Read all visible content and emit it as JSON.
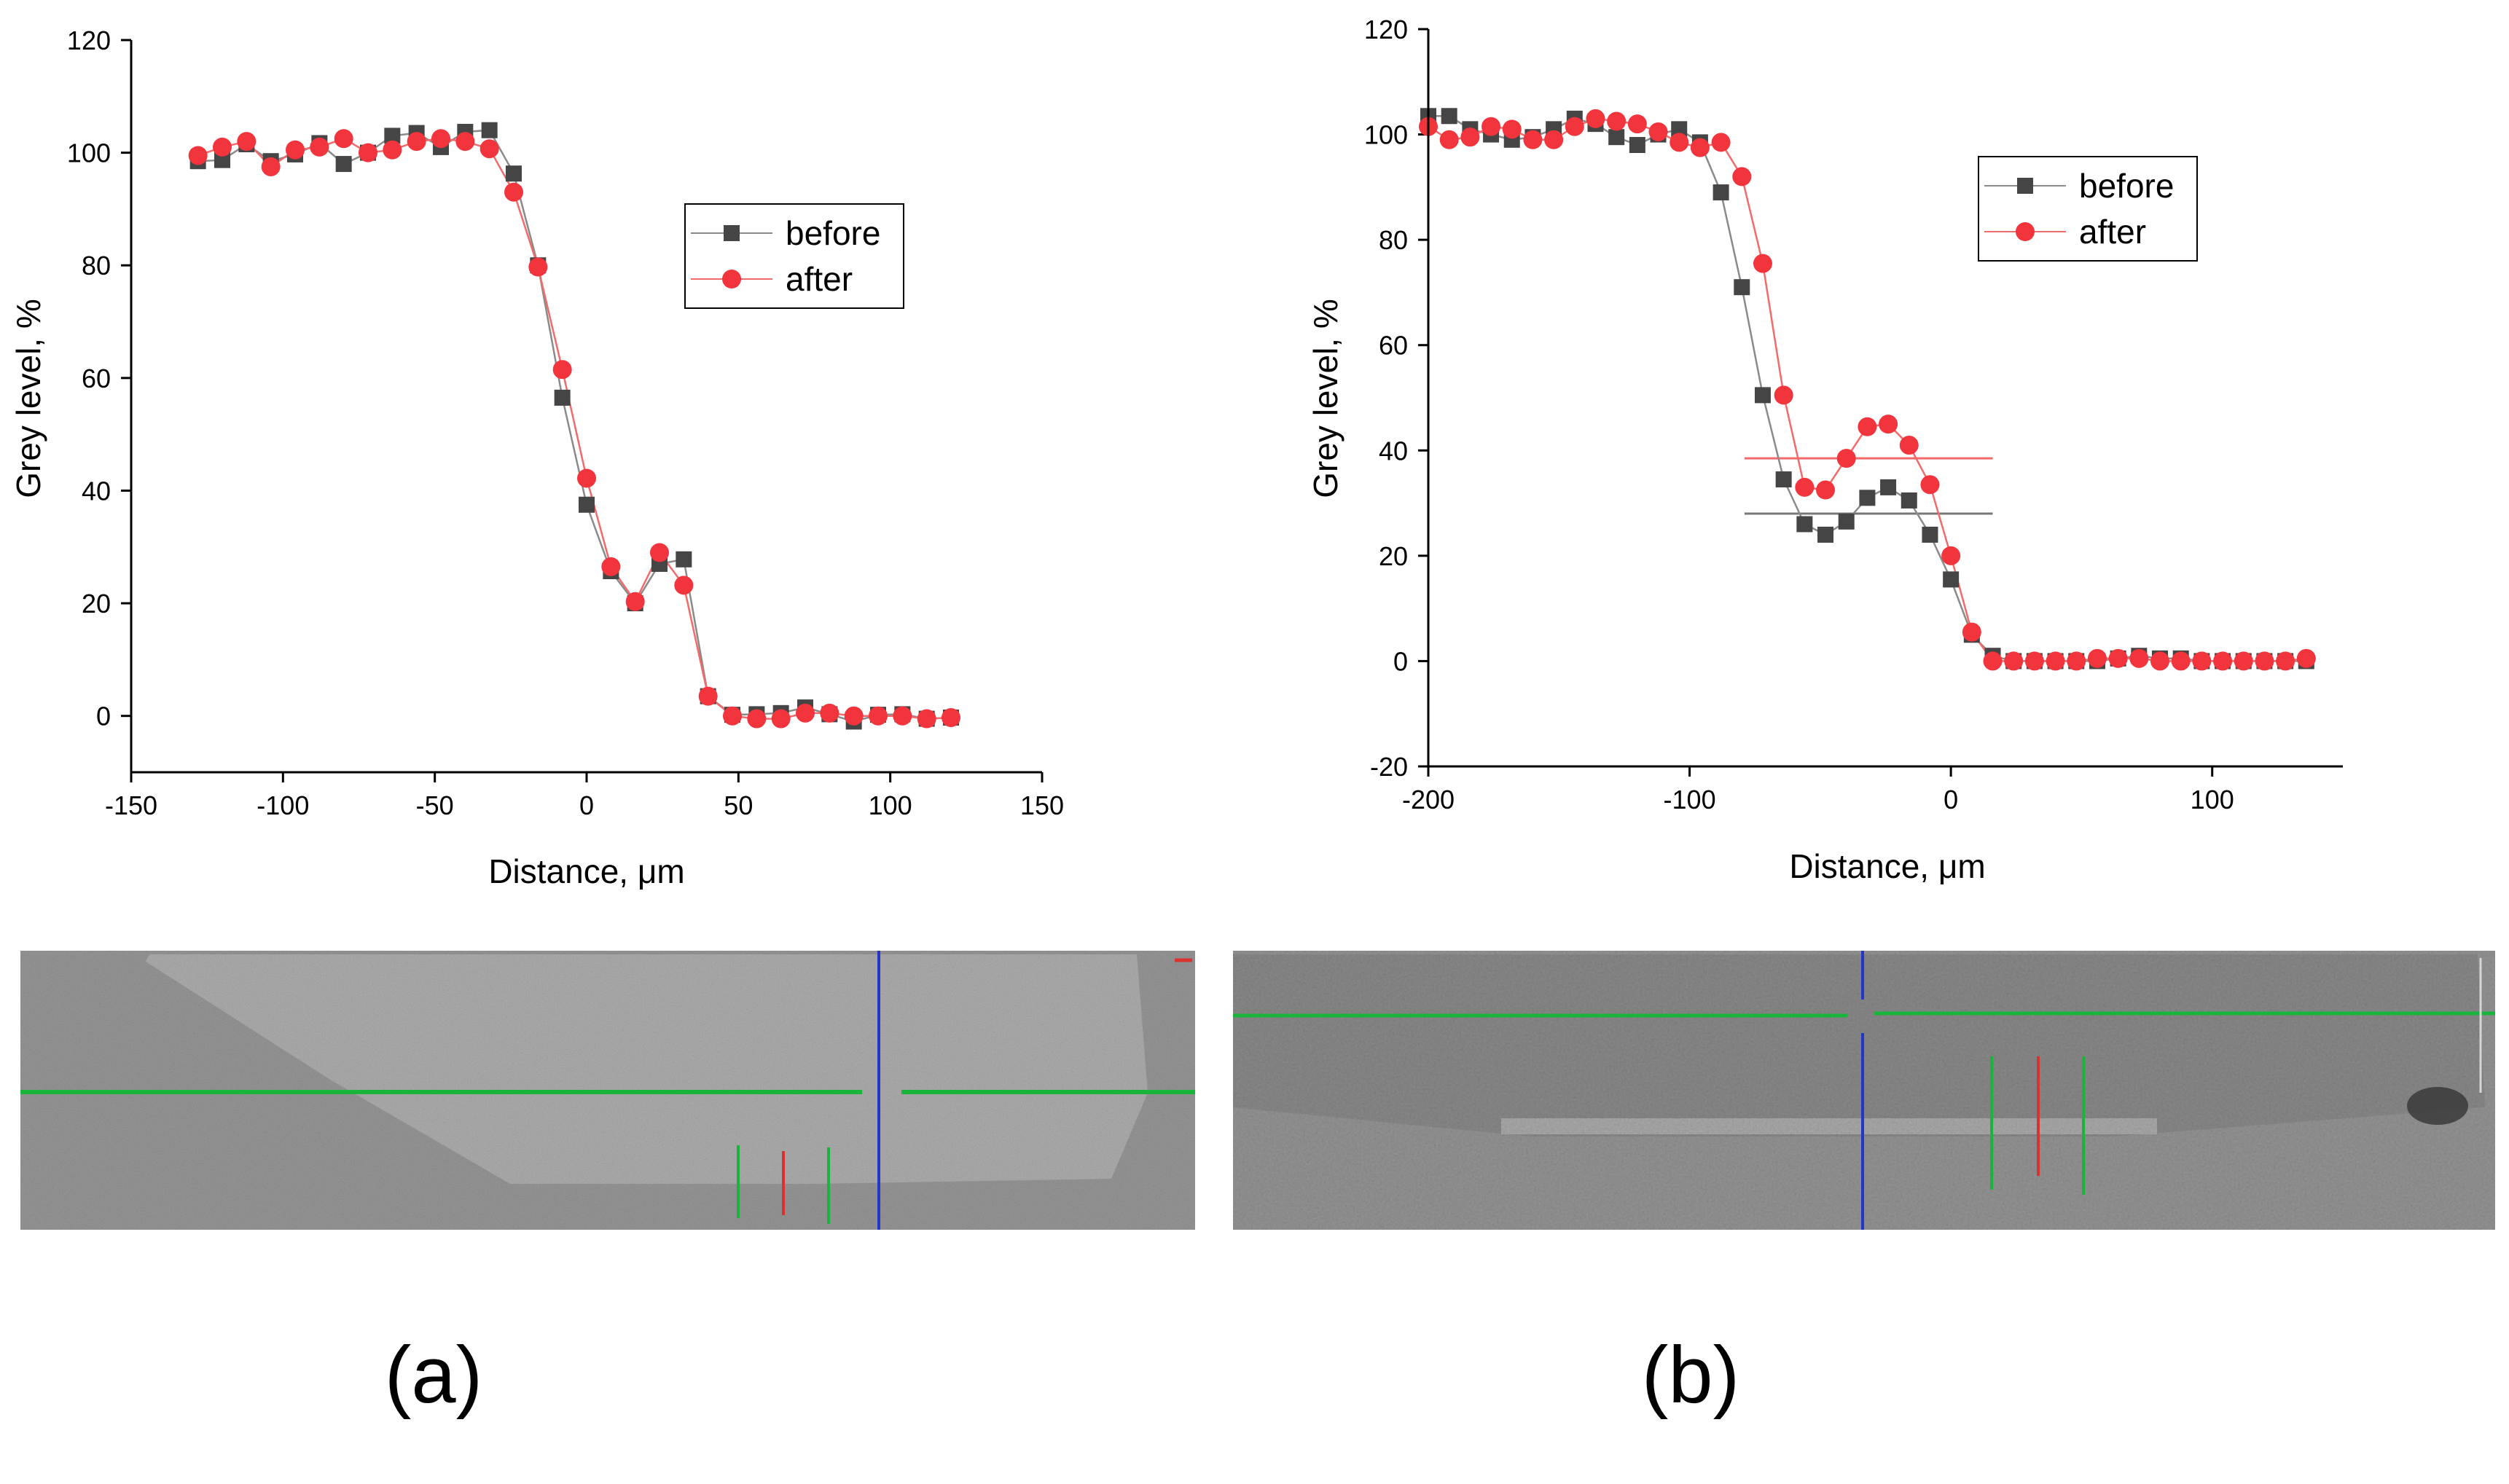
{
  "colors": {
    "before": "#454545",
    "before_line": "#8a8a8a",
    "after": "#f2343c",
    "after_line": "#f26a6a",
    "micro_green": "#19b43a",
    "micro_blue": "#2436c8",
    "micro_red": "#d8332e",
    "micro_bg": "#9a9a9a"
  },
  "panel_labels": {
    "a": "(a)",
    "b": "(b)"
  },
  "chart_data": [
    {
      "type": "line",
      "panel": "a",
      "xlabel": "Distance, μm",
      "ylabel": "Grey level, %",
      "xlim": [
        -150,
        150
      ],
      "ylim": [
        -10,
        120
      ],
      "xticks": [
        -150,
        -100,
        -50,
        0,
        50,
        100,
        150
      ],
      "yticks": [
        0,
        20,
        40,
        60,
        80,
        100,
        120
      ],
      "legend": [
        "before",
        "after"
      ],
      "series": [
        {
          "name": "before",
          "marker": "square",
          "x": [
            -128,
            -120,
            -112,
            -104,
            -96,
            -88,
            -80,
            -72,
            -64,
            -56,
            -48,
            -40,
            -32,
            -24,
            -16,
            -8,
            0,
            8,
            16,
            24,
            32,
            40,
            48,
            56,
            64,
            72,
            80,
            88,
            96,
            104,
            112,
            120
          ],
          "y": [
            98.5,
            98.7,
            101.5,
            98.5,
            99.7,
            101.7,
            98.0,
            100.0,
            103.0,
            103.5,
            101.0,
            103.7,
            104.0,
            96.3,
            80.0,
            56.5,
            37.5,
            25.7,
            20.0,
            27.0,
            27.8,
            3.5,
            0.2,
            0.3,
            0.5,
            1.5,
            0.3,
            -1.0,
            0.2,
            0.3,
            -0.5,
            -0.3
          ]
        },
        {
          "name": "after",
          "marker": "circle",
          "x": [
            -128,
            -120,
            -112,
            -104,
            -96,
            -88,
            -80,
            -72,
            -64,
            -56,
            -48,
            -40,
            -32,
            -24,
            -16,
            -8,
            0,
            8,
            16,
            24,
            32,
            40,
            48,
            56,
            64,
            72,
            80,
            88,
            96,
            104,
            112,
            120
          ],
          "y": [
            99.5,
            101.0,
            102.0,
            97.5,
            100.5,
            101.0,
            102.5,
            100.0,
            100.5,
            102.0,
            102.5,
            102.0,
            100.7,
            93.0,
            79.7,
            61.5,
            42.2,
            26.5,
            20.3,
            29.0,
            23.2,
            3.5,
            0.0,
            -0.5,
            -0.5,
            0.5,
            0.5,
            0.0,
            0.0,
            0.0,
            -0.5,
            -0.3
          ]
        }
      ]
    },
    {
      "type": "line",
      "panel": "b",
      "xlabel": "Distance, μm",
      "ylabel": "Grey level, %",
      "xlim": [
        -200,
        150
      ],
      "ylim": [
        -20,
        120
      ],
      "xticks": [
        -200,
        -100,
        0,
        100
      ],
      "yticks": [
        -20,
        0,
        20,
        40,
        60,
        80,
        100,
        120
      ],
      "legend": [
        "before",
        "after"
      ],
      "series": [
        {
          "name": "before",
          "marker": "square",
          "x": [
            -200,
            -192,
            -184,
            -176,
            -168,
            -160,
            -152,
            -144,
            -136,
            -128,
            -120,
            -112,
            -104,
            -96,
            -88,
            -80,
            -72,
            -64,
            -56,
            -48,
            -40,
            -32,
            -24,
            -16,
            -8,
            0,
            8,
            16,
            24,
            32,
            40,
            48,
            56,
            64,
            72,
            80,
            88,
            96,
            104,
            112,
            120,
            128,
            136
          ],
          "y": [
            103.5,
            103.5,
            101.0,
            100.0,
            99.0,
            99.5,
            101.0,
            103.0,
            102.0,
            99.5,
            98.0,
            100.0,
            101.0,
            98.5,
            89.0,
            71.0,
            50.5,
            34.5,
            26.0,
            24.0,
            26.5,
            31.0,
            33.0,
            30.5,
            24.0,
            15.5,
            5.0,
            1.0,
            0.0,
            0.0,
            0.0,
            0.0,
            0.0,
            0.5,
            1.0,
            0.5,
            0.5,
            0.0,
            0.0,
            0.0,
            0.0,
            0.0,
            0.0
          ]
        },
        {
          "name": "after",
          "marker": "circle",
          "x": [
            -200,
            -192,
            -184,
            -176,
            -168,
            -160,
            -152,
            -144,
            -136,
            -128,
            -120,
            -112,
            -104,
            -96,
            -88,
            -80,
            -72,
            -64,
            -56,
            -48,
            -40,
            -32,
            -24,
            -16,
            -8,
            0,
            8,
            16,
            24,
            32,
            40,
            48,
            56,
            64,
            72,
            80,
            88,
            96,
            104,
            112,
            120,
            128,
            136
          ],
          "y": [
            101.5,
            99.0,
            99.5,
            101.5,
            101.0,
            99.0,
            99.0,
            101.5,
            103.0,
            102.5,
            102.0,
            100.5,
            98.5,
            97.5,
            98.5,
            92.0,
            75.5,
            50.5,
            33.0,
            32.5,
            38.5,
            44.5,
            45.0,
            41.0,
            33.5,
            20.0,
            5.5,
            0.0,
            0.0,
            0.0,
            0.0,
            0.0,
            0.5,
            0.5,
            0.5,
            0.0,
            0.0,
            0.0,
            0.0,
            0.0,
            0.0,
            0.0,
            0.5
          ]
        }
      ],
      "reference_lines": [
        {
          "name": "before-mean",
          "y": 28,
          "x_from": -79,
          "x_to": 16,
          "color": "#777777"
        },
        {
          "name": "after-mean",
          "y": 38.5,
          "x_from": -79,
          "x_to": 16,
          "color": "#f26a6a"
        }
      ]
    }
  ]
}
